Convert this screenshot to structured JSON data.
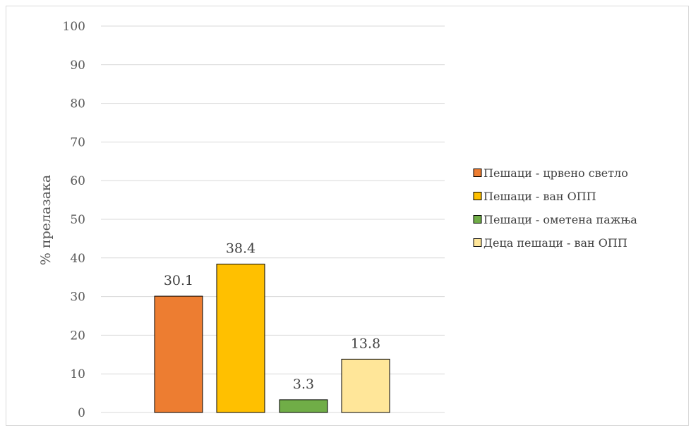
{
  "chart_data": {
    "type": "bar",
    "title": "",
    "xlabel": "",
    "ylabel": "% прелазака",
    "ylim": [
      0,
      100
    ],
    "yticks": [
      0,
      10,
      20,
      30,
      40,
      50,
      60,
      70,
      80,
      90,
      100
    ],
    "grid": true,
    "legend_position": "right",
    "series": [
      {
        "name": "Пешаци - црвено светло",
        "value": 30.1,
        "label": "30.1",
        "color": "#ED7D31"
      },
      {
        "name": "Пешаци - ван ОПП",
        "value": 38.4,
        "label": "38.4",
        "color": "#FFC000"
      },
      {
        "name": "Пешаци - ометена пажња",
        "value": 3.3,
        "label": "3.3",
        "color": "#70AD47"
      },
      {
        "name": "Деца пешаци - ван ОПП",
        "value": 13.8,
        "label": "13.8",
        "color": "#FFE699"
      }
    ]
  }
}
